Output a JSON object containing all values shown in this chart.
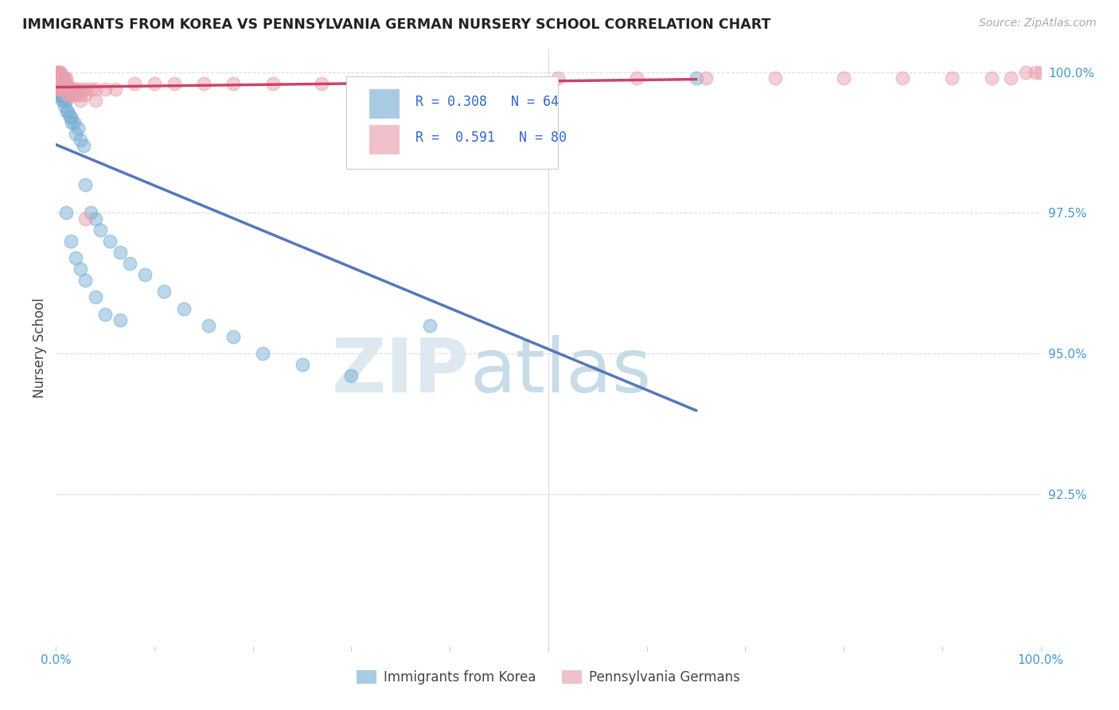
{
  "title": "IMMIGRANTS FROM KOREA VS PENNSYLVANIA GERMAN NURSERY SCHOOL CORRELATION CHART",
  "source": "Source: ZipAtlas.com",
  "ylabel": "Nursery School",
  "right_yticks": [
    "100.0%",
    "97.5%",
    "95.0%",
    "92.5%"
  ],
  "right_ytick_vals": [
    1.0,
    0.975,
    0.95,
    0.925
  ],
  "legend_blue_label": "Immigrants from Korea",
  "legend_pink_label": "Pennsylvania Germans",
  "R_blue": 0.308,
  "N_blue": 64,
  "R_pink": 0.591,
  "N_pink": 80,
  "blue_color": "#7ab0d4",
  "pink_color": "#e8a0b0",
  "blue_line_color": "#5577bb",
  "pink_line_color": "#cc4466",
  "watermark_zip": "ZIP",
  "watermark_atlas": "atlas",
  "ylim_low": 0.898,
  "ylim_high": 1.004,
  "xlim_low": 0.0,
  "xlim_high": 1.0,
  "blue_x": [
    0.0005,
    0.001,
    0.001,
    0.001,
    0.001,
    0.002,
    0.002,
    0.002,
    0.002,
    0.003,
    0.003,
    0.003,
    0.004,
    0.004,
    0.004,
    0.005,
    0.005,
    0.005,
    0.006,
    0.006,
    0.006,
    0.007,
    0.007,
    0.008,
    0.008,
    0.009,
    0.009,
    0.01,
    0.01,
    0.011,
    0.012,
    0.014,
    0.015,
    0.016,
    0.018,
    0.02,
    0.022,
    0.025,
    0.028,
    0.03,
    0.035,
    0.04,
    0.045,
    0.055,
    0.065,
    0.075,
    0.09,
    0.11,
    0.13,
    0.155,
    0.18,
    0.21,
    0.25,
    0.3,
    0.01,
    0.015,
    0.02,
    0.025,
    0.03,
    0.04,
    0.05,
    0.065,
    0.38,
    0.65
  ],
  "blue_y": [
    0.999,
    0.999,
    0.998,
    0.997,
    0.996,
    0.999,
    0.998,
    0.997,
    0.996,
    0.999,
    0.998,
    0.997,
    0.999,
    0.997,
    0.996,
    0.999,
    0.998,
    0.996,
    0.998,
    0.997,
    0.995,
    0.998,
    0.996,
    0.998,
    0.995,
    0.997,
    0.994,
    0.997,
    0.995,
    0.993,
    0.993,
    0.992,
    0.992,
    0.991,
    0.991,
    0.989,
    0.99,
    0.988,
    0.987,
    0.98,
    0.975,
    0.974,
    0.972,
    0.97,
    0.968,
    0.966,
    0.964,
    0.961,
    0.958,
    0.955,
    0.953,
    0.95,
    0.948,
    0.946,
    0.975,
    0.97,
    0.967,
    0.965,
    0.963,
    0.96,
    0.957,
    0.956,
    0.955,
    0.999
  ],
  "pink_x": [
    0.001,
    0.001,
    0.001,
    0.001,
    0.002,
    0.002,
    0.002,
    0.002,
    0.003,
    0.003,
    0.003,
    0.004,
    0.004,
    0.004,
    0.005,
    0.005,
    0.005,
    0.006,
    0.006,
    0.006,
    0.007,
    0.007,
    0.008,
    0.008,
    0.009,
    0.009,
    0.01,
    0.01,
    0.011,
    0.012,
    0.013,
    0.015,
    0.016,
    0.018,
    0.02,
    0.025,
    0.03,
    0.035,
    0.04,
    0.05,
    0.06,
    0.08,
    0.1,
    0.12,
    0.15,
    0.18,
    0.22,
    0.27,
    0.32,
    0.38,
    0.44,
    0.51,
    0.59,
    0.66,
    0.73,
    0.8,
    0.86,
    0.91,
    0.95,
    0.97,
    0.985,
    0.995,
    1.0,
    0.003,
    0.005,
    0.007,
    0.009,
    0.012,
    0.015,
    0.02,
    0.025,
    0.03,
    0.005,
    0.008,
    0.01,
    0.015,
    0.02,
    0.025,
    0.03,
    0.04
  ],
  "pink_y": [
    1.0,
    1.0,
    0.999,
    0.999,
    1.0,
    0.999,
    0.999,
    0.998,
    1.0,
    0.999,
    0.998,
    1.0,
    0.999,
    0.998,
    1.0,
    0.999,
    0.997,
    0.999,
    0.998,
    0.997,
    0.999,
    0.998,
    0.999,
    0.997,
    0.999,
    0.997,
    0.999,
    0.997,
    0.998,
    0.997,
    0.996,
    0.997,
    0.996,
    0.997,
    0.996,
    0.997,
    0.997,
    0.997,
    0.997,
    0.997,
    0.997,
    0.998,
    0.998,
    0.998,
    0.998,
    0.998,
    0.998,
    0.998,
    0.998,
    0.998,
    0.998,
    0.999,
    0.999,
    0.999,
    0.999,
    0.999,
    0.999,
    0.999,
    0.999,
    0.999,
    1.0,
    1.0,
    1.0,
    0.998,
    0.997,
    0.997,
    0.997,
    0.996,
    0.996,
    0.996,
    0.995,
    0.974,
    0.999,
    0.998,
    0.998,
    0.997,
    0.997,
    0.996,
    0.996,
    0.995
  ]
}
